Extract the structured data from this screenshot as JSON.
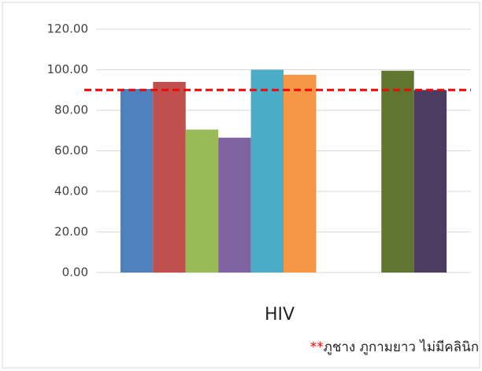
{
  "chart_data": {
    "type": "bar",
    "categories": [
      "HIV"
    ],
    "series": [
      {
        "color": "#4f81bd",
        "values": [
          90.5
        ]
      },
      {
        "color": "#c0504d",
        "values": [
          94
        ]
      },
      {
        "color": "#9bbb59",
        "values": [
          70.5
        ]
      },
      {
        "color": "#8064a2",
        "values": [
          66.5
        ]
      },
      {
        "color": "#4bacc6",
        "values": [
          100
        ]
      },
      {
        "color": "#f79646",
        "values": [
          97.5
        ]
      },
      {
        "values": [
          null
        ]
      },
      {
        "values": [
          null
        ]
      },
      {
        "color": "#5f7530",
        "values": [
          99.5
        ]
      },
      {
        "color": "#4d3b62",
        "values": [
          90
        ]
      }
    ],
    "ylim": [
      0,
      120
    ],
    "yticks": [
      {
        "value": 0,
        "label": "0.00"
      },
      {
        "value": 20,
        "label": "20.00"
      },
      {
        "value": 40,
        "label": "40.00"
      },
      {
        "value": 60,
        "label": "60.00"
      },
      {
        "value": 80,
        "label": "80.00"
      },
      {
        "value": 100,
        "label": "100.00"
      },
      {
        "value": 120,
        "label": "120.00"
      }
    ],
    "grid": true,
    "reference_line": {
      "value": 90,
      "color": "#ff0000",
      "style": "dashed"
    },
    "annotation": {
      "marker": "**",
      "text": "ภูชาง ภูกามยาว ไม่มีคลินิก"
    }
  }
}
